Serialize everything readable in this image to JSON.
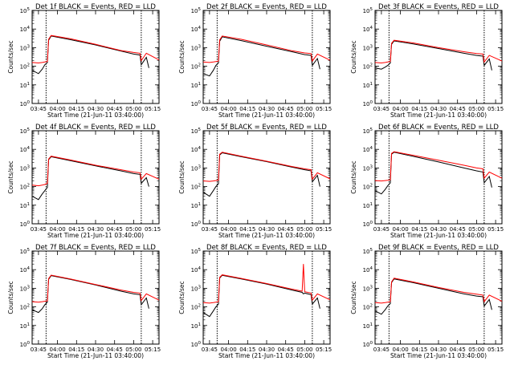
{
  "chart_data": [
    {
      "type": "line",
      "title": "Det 1f BLACK = Events, RED = LLD",
      "xlabel": "Start Time (21-Jun-11 03:40:00)",
      "ylabel": "Counts/sec",
      "xticks": [
        "03:45",
        "04:00",
        "04:15",
        "04:30",
        "04:45",
        "05:00",
        "05:15"
      ],
      "yticks": [
        "10^0",
        "10^1",
        "10^2",
        "10^3",
        "10^4",
        "10^5"
      ],
      "ylim": [
        1,
        100000
      ],
      "yscale": "log",
      "vlines": [
        "03:51",
        "05:06"
      ],
      "series": [
        {
          "color": "#000000",
          "x": [
            "03:40",
            "03:45",
            "03:48",
            "03:50",
            "03:52",
            "03:53",
            "03:55",
            "04:10",
            "04:30",
            "04:50",
            "05:00",
            "05:05",
            "05:06",
            "05:10",
            "05:12"
          ],
          "y": [
            60,
            40,
            70,
            120,
            160,
            2500,
            4200,
            2700,
            1400,
            650,
            450,
            400,
            120,
            300,
            80
          ]
        },
        {
          "color": "#ff0000",
          "x": [
            "03:40",
            "03:45",
            "03:48",
            "03:50",
            "03:52",
            "03:53",
            "03:55",
            "04:10",
            "04:30",
            "04:50",
            "05:00",
            "05:05",
            "05:06",
            "05:10",
            "05:20"
          ],
          "y": [
            160,
            150,
            160,
            170,
            180,
            2800,
            4500,
            3000,
            1500,
            700,
            550,
            500,
            200,
            500,
            220
          ]
        }
      ]
    },
    {
      "type": "line",
      "title": "Det 2f BLACK = Events, RED = LLD",
      "xlabel": "Start Time (21-Jun-11 03:40:00)",
      "ylabel": "Counts/sec",
      "xticks": [
        "03:45",
        "04:00",
        "04:15",
        "04:30",
        "04:45",
        "05:00",
        "05:15"
      ],
      "yticks": [
        "10^0",
        "10^1",
        "10^2",
        "10^3",
        "10^4",
        "10^5"
      ],
      "ylim": [
        1,
        100000
      ],
      "yscale": "log",
      "vlines": [
        "03:51",
        "05:06"
      ],
      "series": [
        {
          "color": "#000000",
          "x": [
            "03:40",
            "03:45",
            "03:48",
            "03:50",
            "03:52",
            "03:53",
            "03:55",
            "04:10",
            "04:30",
            "04:50",
            "05:00",
            "05:05",
            "05:06",
            "05:10",
            "05:12"
          ],
          "y": [
            40,
            30,
            60,
            110,
            150,
            2200,
            3800,
            2400,
            1200,
            600,
            420,
            380,
            110,
            260,
            70
          ]
        },
        {
          "color": "#ff0000",
          "x": [
            "03:40",
            "03:45",
            "03:48",
            "03:50",
            "03:52",
            "03:53",
            "03:55",
            "04:10",
            "04:30",
            "04:50",
            "05:00",
            "05:05",
            "05:06",
            "05:10",
            "05:20"
          ],
          "y": [
            170,
            160,
            170,
            180,
            190,
            2600,
            4200,
            2800,
            1400,
            680,
            520,
            480,
            190,
            450,
            210
          ]
        }
      ]
    },
    {
      "type": "line",
      "title": "Det 3f BLACK = Events, RED = LLD",
      "xlabel": "Start Time (21-Jun-11 03:40:00)",
      "ylabel": "Counts/sec",
      "xticks": [
        "03:45",
        "04:00",
        "04:15",
        "04:30",
        "04:45",
        "05:00",
        "05:15"
      ],
      "yticks": [
        "10^0",
        "10^1",
        "10^2",
        "10^3",
        "10^4",
        "10^5"
      ],
      "ylim": [
        1,
        100000
      ],
      "yscale": "log",
      "vlines": [
        "03:51",
        "05:06"
      ],
      "series": [
        {
          "color": "#000000",
          "x": [
            "03:40",
            "03:45",
            "03:48",
            "03:50",
            "03:52",
            "03:53",
            "03:55",
            "04:10",
            "04:30",
            "04:50",
            "05:00",
            "05:05",
            "05:06",
            "05:10",
            "05:12"
          ],
          "y": [
            80,
            70,
            90,
            110,
            150,
            1500,
            2300,
            1600,
            900,
            500,
            380,
            350,
            110,
            250,
            60
          ]
        },
        {
          "color": "#ff0000",
          "x": [
            "03:40",
            "03:45",
            "03:48",
            "03:50",
            "03:52",
            "03:53",
            "03:55",
            "04:10",
            "04:30",
            "04:50",
            "05:00",
            "05:05",
            "05:06",
            "05:10",
            "05:20"
          ],
          "y": [
            160,
            150,
            160,
            170,
            180,
            1700,
            2500,
            1800,
            1000,
            600,
            480,
            450,
            170,
            380,
            190
          ]
        }
      ]
    },
    {
      "type": "line",
      "title": "Det 4f BLACK = Events, RED = LLD",
      "xlabel": "Start Time (21-Jun-11 03:40:00)",
      "ylabel": "Counts/sec",
      "xticks": [
        "03:45",
        "04:00",
        "04:15",
        "04:30",
        "04:45",
        "05:00",
        "05:15"
      ],
      "yticks": [
        "10^0",
        "10^1",
        "10^2",
        "10^3",
        "10^4",
        "10^5"
      ],
      "ylim": [
        1,
        100000
      ],
      "yscale": "log",
      "vlines": [
        "03:51",
        "05:06"
      ],
      "series": [
        {
          "color": "#000000",
          "x": [
            "03:40",
            "03:45",
            "03:48",
            "03:50",
            "03:52",
            "03:53",
            "03:55",
            "04:10",
            "04:30",
            "04:50",
            "05:00",
            "05:05",
            "05:06",
            "05:10",
            "05:12"
          ],
          "y": [
            30,
            20,
            40,
            60,
            90,
            2800,
            4000,
            2500,
            1300,
            700,
            500,
            450,
            150,
            300,
            100
          ]
        },
        {
          "color": "#ff0000",
          "x": [
            "03:40",
            "03:45",
            "03:48",
            "03:50",
            "03:52",
            "03:53",
            "03:55",
            "04:10",
            "04:30",
            "04:50",
            "05:00",
            "05:05",
            "05:06",
            "05:10",
            "05:20"
          ],
          "y": [
            120,
            110,
            120,
            130,
            150,
            3000,
            4300,
            2700,
            1400,
            800,
            600,
            550,
            250,
            500,
            250
          ]
        }
      ]
    },
    {
      "type": "line",
      "title": "Det 5f BLACK = Events, RED = LLD",
      "xlabel": "Start Time (21-Jun-11 03:40:00)",
      "ylabel": "Counts/sec",
      "xticks": [
        "03:45",
        "04:00",
        "04:15",
        "04:30",
        "04:45",
        "05:00",
        "05:15"
      ],
      "yticks": [
        "10^0",
        "10^1",
        "10^2",
        "10^3",
        "10^4",
        "10^5"
      ],
      "ylim": [
        1,
        100000
      ],
      "yscale": "log",
      "vlines": [
        "03:51",
        "05:06"
      ],
      "series": [
        {
          "color": "#000000",
          "x": [
            "03:40",
            "03:45",
            "03:48",
            "03:50",
            "03:52",
            "03:53",
            "03:55",
            "04:10",
            "04:30",
            "04:50",
            "05:00",
            "05:05",
            "05:06",
            "05:10",
            "05:12"
          ],
          "y": [
            50,
            30,
            60,
            100,
            140,
            5000,
            6500,
            4000,
            2200,
            1100,
            800,
            700,
            180,
            400,
            100
          ]
        },
        {
          "color": "#ff0000",
          "x": [
            "03:40",
            "03:45",
            "03:48",
            "03:50",
            "03:52",
            "03:53",
            "03:55",
            "04:10",
            "04:30",
            "04:50",
            "05:00",
            "05:05",
            "05:06",
            "05:10",
            "05:20"
          ],
          "y": [
            200,
            190,
            200,
            210,
            220,
            5500,
            7000,
            4300,
            2300,
            1200,
            900,
            800,
            250,
            550,
            260
          ]
        }
      ]
    },
    {
      "type": "line",
      "title": "Det 6f BLACK = Events, RED = LLD",
      "xlabel": "Start Time (21-Jun-11 03:40:00)",
      "ylabel": "Counts/sec",
      "xticks": [
        "03:45",
        "04:00",
        "04:15",
        "04:30",
        "04:45",
        "05:00",
        "05:15"
      ],
      "yticks": [
        "10^0",
        "10^1",
        "10^2",
        "10^3",
        "10^4",
        "10^5"
      ],
      "ylim": [
        1,
        100000
      ],
      "yscale": "log",
      "vlines": [
        "03:51",
        "05:06"
      ],
      "series": [
        {
          "color": "#000000",
          "x": [
            "03:40",
            "03:45",
            "03:48",
            "03:50",
            "03:52",
            "03:53",
            "03:55",
            "04:10",
            "04:30",
            "04:50",
            "05:00",
            "05:05",
            "05:06",
            "05:10",
            "05:12"
          ],
          "y": [
            60,
            40,
            70,
            110,
            160,
            5500,
            7000,
            4200,
            2100,
            1000,
            700,
            600,
            160,
            350,
            90
          ]
        },
        {
          "color": "#ff0000",
          "x": [
            "03:40",
            "03:45",
            "03:48",
            "03:50",
            "03:52",
            "03:53",
            "03:55",
            "04:10",
            "04:30",
            "04:50",
            "05:00",
            "05:05",
            "05:06",
            "05:10",
            "05:20"
          ],
          "y": [
            210,
            200,
            210,
            220,
            230,
            6000,
            7500,
            4800,
            2600,
            1400,
            1000,
            900,
            280,
            600,
            280
          ]
        }
      ]
    },
    {
      "type": "line",
      "title": "Det 7f BLACK = Events, RED = LLD",
      "xlabel": "Start Time (21-Jun-11 03:40:00)",
      "ylabel": "Counts/sec",
      "xticks": [
        "03:45",
        "04:00",
        "04:15",
        "04:30",
        "04:45",
        "05:00",
        "05:15"
      ],
      "yticks": [
        "10^0",
        "10^1",
        "10^2",
        "10^3",
        "10^4",
        "10^5"
      ],
      "ylim": [
        1,
        100000
      ],
      "yscale": "log",
      "vlines": [
        "03:51",
        "05:06"
      ],
      "series": [
        {
          "color": "#000000",
          "x": [
            "03:40",
            "03:45",
            "03:48",
            "03:50",
            "03:52",
            "03:53",
            "03:55",
            "04:10",
            "04:30",
            "04:50",
            "05:00",
            "05:05",
            "05:06",
            "05:10",
            "05:12"
          ],
          "y": [
            70,
            50,
            80,
            130,
            180,
            3000,
            4800,
            3000,
            1500,
            700,
            500,
            450,
            130,
            300,
            80
          ]
        },
        {
          "color": "#ff0000",
          "x": [
            "03:40",
            "03:45",
            "03:48",
            "03:50",
            "03:52",
            "03:53",
            "03:55",
            "04:10",
            "04:30",
            "04:50",
            "05:00",
            "05:05",
            "05:06",
            "05:10",
            "05:20"
          ],
          "y": [
            190,
            180,
            190,
            200,
            210,
            3300,
            5100,
            3200,
            1600,
            800,
            600,
            550,
            220,
            500,
            230
          ]
        }
      ]
    },
    {
      "type": "line",
      "title": "Det 8f BLACK = Events, RED = LLD",
      "xlabel": "Start Time (21-Jun-11 03:40:00)",
      "ylabel": "Counts/sec",
      "xticks": [
        "03:45",
        "04:00",
        "04:15",
        "04:30",
        "04:45",
        "05:00",
        "05:15"
      ],
      "yticks": [
        "10^0",
        "10^1",
        "10^2",
        "10^3",
        "10^4",
        "10^5"
      ],
      "ylim": [
        1,
        100000
      ],
      "yscale": "log",
      "vlines": [
        "03:51",
        "05:06"
      ],
      "series": [
        {
          "color": "#000000",
          "x": [
            "03:40",
            "03:45",
            "03:48",
            "03:50",
            "03:52",
            "03:53",
            "03:55",
            "04:10",
            "04:30",
            "04:50",
            "04:58",
            "04:59",
            "05:00",
            "05:05",
            "05:06",
            "05:10",
            "05:12"
          ],
          "y": [
            50,
            30,
            60,
            100,
            140,
            3500,
            5000,
            3200,
            1700,
            800,
            600,
            500,
            550,
            450,
            140,
            300,
            80
          ]
        },
        {
          "color": "#ff0000",
          "x": [
            "03:40",
            "03:45",
            "03:48",
            "03:50",
            "03:52",
            "03:53",
            "03:55",
            "04:10",
            "04:30",
            "04:50",
            "04:58",
            "04:59",
            "05:00",
            "05:05",
            "05:06",
            "05:10",
            "05:20"
          ],
          "y": [
            170,
            160,
            170,
            180,
            190,
            3800,
            5300,
            3400,
            1800,
            900,
            700,
            20000,
            650,
            550,
            230,
            500,
            240
          ]
        }
      ]
    },
    {
      "type": "line",
      "title": "Det 9f BLACK = Events, RED = LLD",
      "xlabel": "Start Time (21-Jun-11 03:40:00)",
      "ylabel": "Counts/sec",
      "xticks": [
        "03:45",
        "04:00",
        "04:15",
        "04:30",
        "04:45",
        "05:00",
        "05:15"
      ],
      "yticks": [
        "10^0",
        "10^1",
        "10^2",
        "10^3",
        "10^4",
        "10^5"
      ],
      "ylim": [
        1,
        100000
      ],
      "yscale": "log",
      "vlines": [
        "03:51",
        "05:06"
      ],
      "series": [
        {
          "color": "#000000",
          "x": [
            "03:40",
            "03:45",
            "03:48",
            "03:50",
            "03:52",
            "03:53",
            "03:55",
            "04:10",
            "04:30",
            "04:50",
            "05:00",
            "05:05",
            "05:06",
            "05:10",
            "05:12"
          ],
          "y": [
            60,
            40,
            70,
            110,
            150,
            2000,
            3200,
            2000,
            1000,
            500,
            380,
            350,
            110,
            250,
            70
          ]
        },
        {
          "color": "#ff0000",
          "x": [
            "03:40",
            "03:45",
            "03:48",
            "03:50",
            "03:52",
            "03:53",
            "03:55",
            "04:10",
            "04:30",
            "04:50",
            "05:00",
            "05:05",
            "05:06",
            "05:10",
            "05:20"
          ],
          "y": [
            170,
            160,
            170,
            180,
            190,
            2200,
            3500,
            2200,
            1100,
            600,
            480,
            430,
            190,
            430,
            200
          ]
        }
      ]
    }
  ]
}
